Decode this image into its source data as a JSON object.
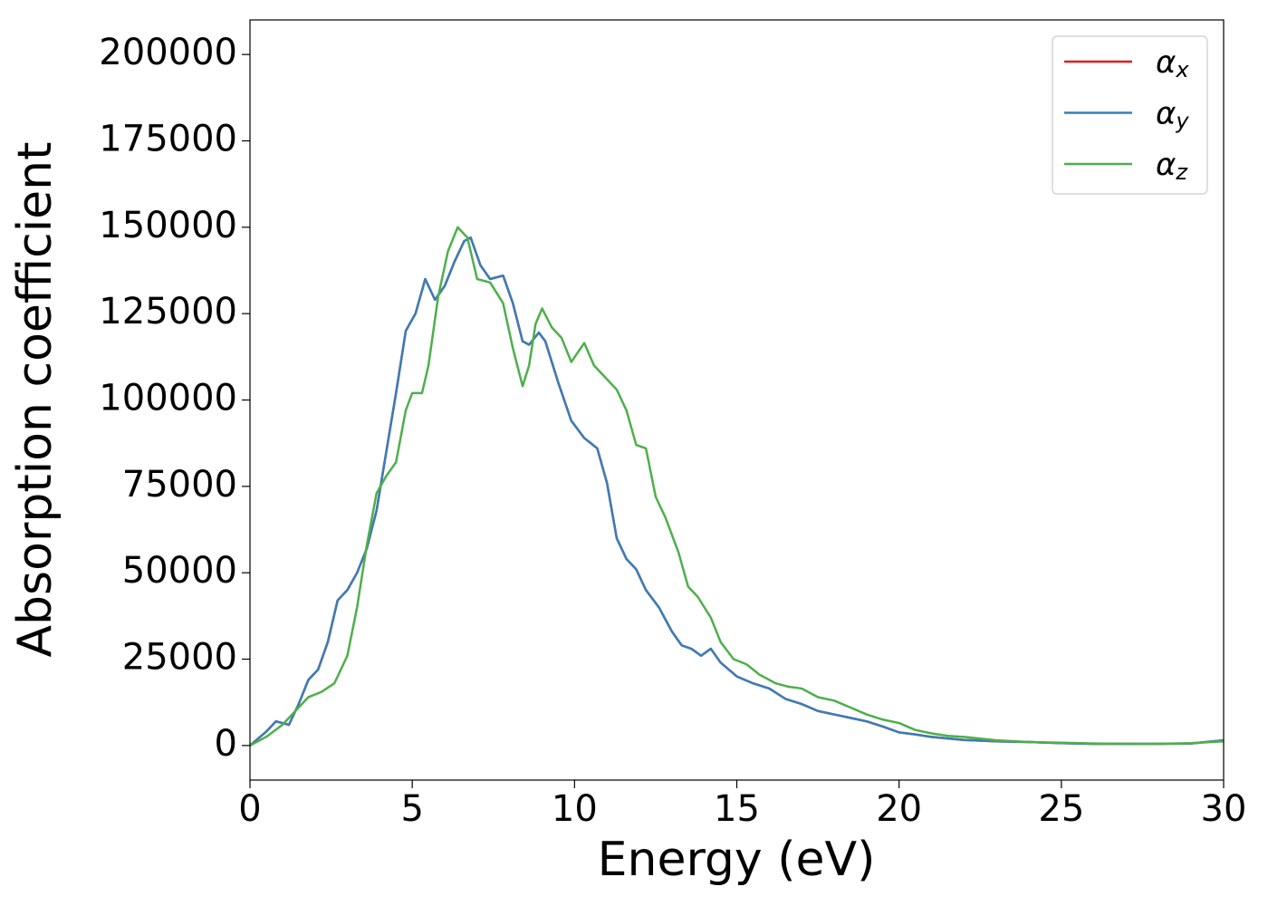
{
  "chart_data": {
    "type": "line",
    "xlabel": "Energy (eV)",
    "ylabel": "Absorption coefficient",
    "xlim": [
      0,
      30
    ],
    "xticks": [
      0,
      5,
      10,
      15,
      20,
      25,
      30
    ],
    "ylim": [
      -10000,
      210000
    ],
    "yticks": [
      0,
      25000,
      50000,
      75000,
      100000,
      125000,
      150000,
      175000,
      200000
    ],
    "legend": "upper right",
    "grid": false,
    "series": [
      {
        "name": "αx",
        "color": "#e41a1c",
        "x": [
          0,
          0.5,
          0.8,
          1.0,
          1.2,
          1.5,
          1.8,
          2.1,
          2.4,
          2.7,
          3.0,
          3.3,
          3.6,
          3.9,
          4.2,
          4.5,
          4.8,
          5.1,
          5.4,
          5.7,
          6.0,
          6.3,
          6.6,
          6.8,
          7.1,
          7.4,
          7.8,
          8.1,
          8.4,
          8.6,
          8.9,
          9.1,
          9.5,
          9.9,
          10.3,
          10.7,
          11.0,
          11.3,
          11.6,
          11.9,
          12.2,
          12.6,
          13.0,
          13.3,
          13.6,
          13.9,
          14.2,
          14.5,
          15.0,
          15.5,
          16.0,
          16.5,
          17.0,
          17.5,
          18.0,
          18.5,
          19.0,
          19.5,
          20.0,
          20.5,
          21.0,
          22.0,
          23.0,
          24.0,
          25.0,
          26.0,
          27.0,
          28.0,
          29.0,
          30.0
        ],
        "values": [
          0,
          4000,
          7000,
          6500,
          6000,
          12000,
          19000,
          22000,
          30000,
          42000,
          45000,
          50000,
          57000,
          68000,
          85000,
          102000,
          120000,
          125000,
          135000,
          129000,
          133000,
          140000,
          146000,
          147000,
          139000,
          135000,
          136000,
          128000,
          117000,
          116000,
          119500,
          117000,
          105000,
          94000,
          89000,
          86000,
          76000,
          60000,
          54000,
          51000,
          45000,
          40000,
          33000,
          29000,
          28000,
          26000,
          28000,
          24000,
          20000,
          18000,
          16500,
          13500,
          12000,
          10000,
          9000,
          8000,
          7000,
          5500,
          3800,
          3200,
          2500,
          1600,
          1200,
          1000,
          700,
          500,
          500,
          500,
          600,
          1500
        ]
      },
      {
        "name": "αy",
        "color": "#377eb8",
        "x": [
          0,
          0.5,
          0.8,
          1.0,
          1.2,
          1.5,
          1.8,
          2.1,
          2.4,
          2.7,
          3.0,
          3.3,
          3.6,
          3.9,
          4.2,
          4.5,
          4.8,
          5.1,
          5.4,
          5.7,
          6.0,
          6.3,
          6.6,
          6.8,
          7.1,
          7.4,
          7.8,
          8.1,
          8.4,
          8.6,
          8.9,
          9.1,
          9.5,
          9.9,
          10.3,
          10.7,
          11.0,
          11.3,
          11.6,
          11.9,
          12.2,
          12.6,
          13.0,
          13.3,
          13.6,
          13.9,
          14.2,
          14.5,
          15.0,
          15.5,
          16.0,
          16.5,
          17.0,
          17.5,
          18.0,
          18.5,
          19.0,
          19.5,
          20.0,
          20.5,
          21.0,
          22.0,
          23.0,
          24.0,
          25.0,
          26.0,
          27.0,
          28.0,
          29.0,
          30.0
        ],
        "values": [
          0,
          4000,
          7000,
          6500,
          6000,
          12000,
          19000,
          22000,
          30000,
          42000,
          45000,
          50000,
          57000,
          68000,
          85000,
          102000,
          120000,
          125000,
          135000,
          129000,
          133000,
          140000,
          146000,
          147000,
          139000,
          135000,
          136000,
          128000,
          117000,
          116000,
          119500,
          117000,
          105000,
          94000,
          89000,
          86000,
          76000,
          60000,
          54000,
          51000,
          45000,
          40000,
          33000,
          29000,
          28000,
          26000,
          28000,
          24000,
          20000,
          18000,
          16500,
          13500,
          12000,
          10000,
          9000,
          8000,
          7000,
          5500,
          3800,
          3200,
          2500,
          1600,
          1200,
          1000,
          700,
          500,
          500,
          500,
          600,
          1500
        ]
      },
      {
        "name": "αz",
        "color": "#4daf4a",
        "x": [
          0,
          0.5,
          1.0,
          1.5,
          1.8,
          2.2,
          2.6,
          3.0,
          3.3,
          3.6,
          3.9,
          4.2,
          4.5,
          4.8,
          5.0,
          5.3,
          5.5,
          5.8,
          6.1,
          6.4,
          6.7,
          7.0,
          7.4,
          7.8,
          8.1,
          8.4,
          8.6,
          8.8,
          9.0,
          9.3,
          9.6,
          9.9,
          10.3,
          10.6,
          11.0,
          11.3,
          11.6,
          11.9,
          12.2,
          12.5,
          12.8,
          13.2,
          13.5,
          13.8,
          14.2,
          14.5,
          14.9,
          15.3,
          15.7,
          16.2,
          16.6,
          17.0,
          17.5,
          18.0,
          18.5,
          19.0,
          19.5,
          20.0,
          20.5,
          21.0,
          21.5,
          22.0,
          23.0,
          24.0,
          25.0,
          26.0,
          27.0,
          28.0,
          29.0,
          30.0
        ],
        "values": [
          0,
          2500,
          6000,
          11000,
          14000,
          15500,
          18000,
          26000,
          40000,
          58000,
          73000,
          78000,
          82000,
          97000,
          102000,
          102000,
          110000,
          130000,
          143000,
          150000,
          147000,
          135000,
          134000,
          128000,
          115000,
          104000,
          110000,
          122000,
          126500,
          121000,
          118000,
          111000,
          116500,
          110000,
          106000,
          103000,
          97000,
          87000,
          86000,
          72000,
          66000,
          56000,
          46000,
          43000,
          37000,
          30000,
          25000,
          23500,
          20500,
          18000,
          17000,
          16500,
          14000,
          13000,
          11000,
          9000,
          7500,
          6500,
          4500,
          3500,
          2800,
          2500,
          1500,
          1000,
          800,
          600,
          500,
          500,
          700,
          1200
        ]
      }
    ]
  }
}
